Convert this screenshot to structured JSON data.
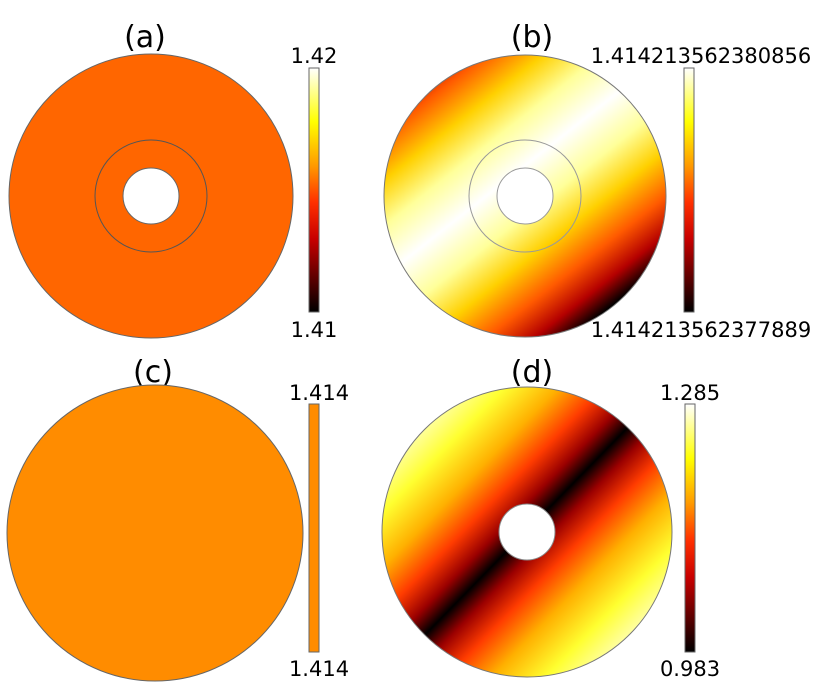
{
  "panels": [
    {
      "label": "(a)",
      "colorbar": {
        "max": "1.42",
        "min": "1.41"
      },
      "fill": "#ff6600",
      "has_hole": true,
      "has_ring": true
    },
    {
      "label": "(b)",
      "colorbar": {
        "max": "1.414213562380856",
        "min": "1.414213562377889"
      },
      "fill": "gradient",
      "has_hole": true,
      "has_ring": true
    },
    {
      "label": "(c)",
      "colorbar": {
        "max": "1.414",
        "min": "1.414"
      },
      "fill": "#ff8c00",
      "has_hole": false,
      "has_ring": false
    },
    {
      "label": "(d)",
      "colorbar": {
        "max": "1.285",
        "min": "0.983"
      },
      "fill": "gradient",
      "has_hole": true,
      "has_ring": false
    }
  ],
  "colormap": "heat (black-red-yellow-white)",
  "colors": {
    "panel_a": "#ff6600",
    "panel_c": "#ff8c00",
    "outline": "#666666"
  }
}
